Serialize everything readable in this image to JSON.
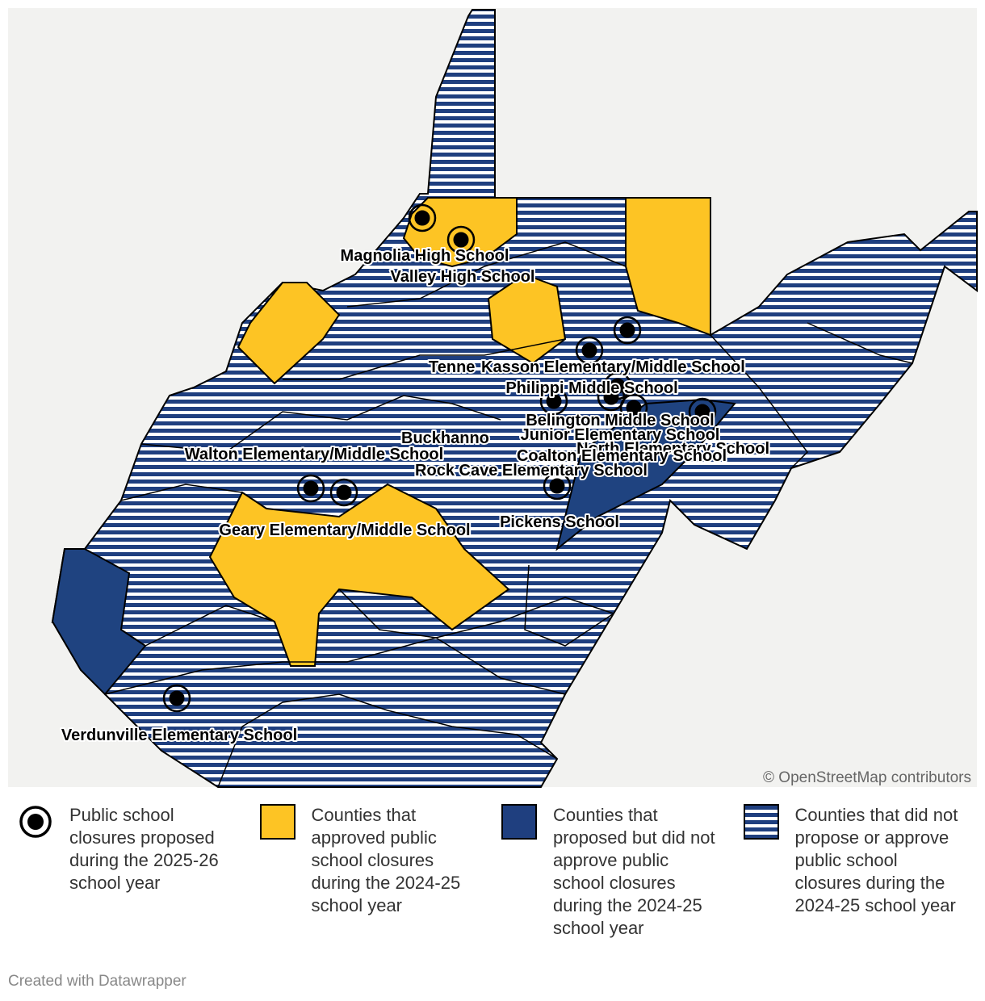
{
  "map": {
    "labels": [
      "Magnolia High School",
      "Valley High School",
      "Tenne",
      "Kasson Elementary/Middle School",
      "Philippi Middle School",
      "Belington Middle School",
      "Buckhanno",
      "Junior Elementary School",
      "North Elementary School",
      "Coalton Elementary School",
      "Walton Elementary/Middle School",
      "Rock Cave Elementary School",
      "Geary Elementary/Middle School",
      "Pickens School",
      "Verdunville Elementary School"
    ],
    "attribution": "© OpenStreetMap contributors"
  },
  "legend": [
    "Public school closures proposed during the 2025-26 school year",
    "Counties that approved public school closures during the 2024-25 school year",
    "Counties that proposed but did not approve public school closures during the 2024-25 school year",
    "Counties that did not propose or approve public school closures during the 2024-25 school year"
  ],
  "footer": "Created with Datawrapper"
}
